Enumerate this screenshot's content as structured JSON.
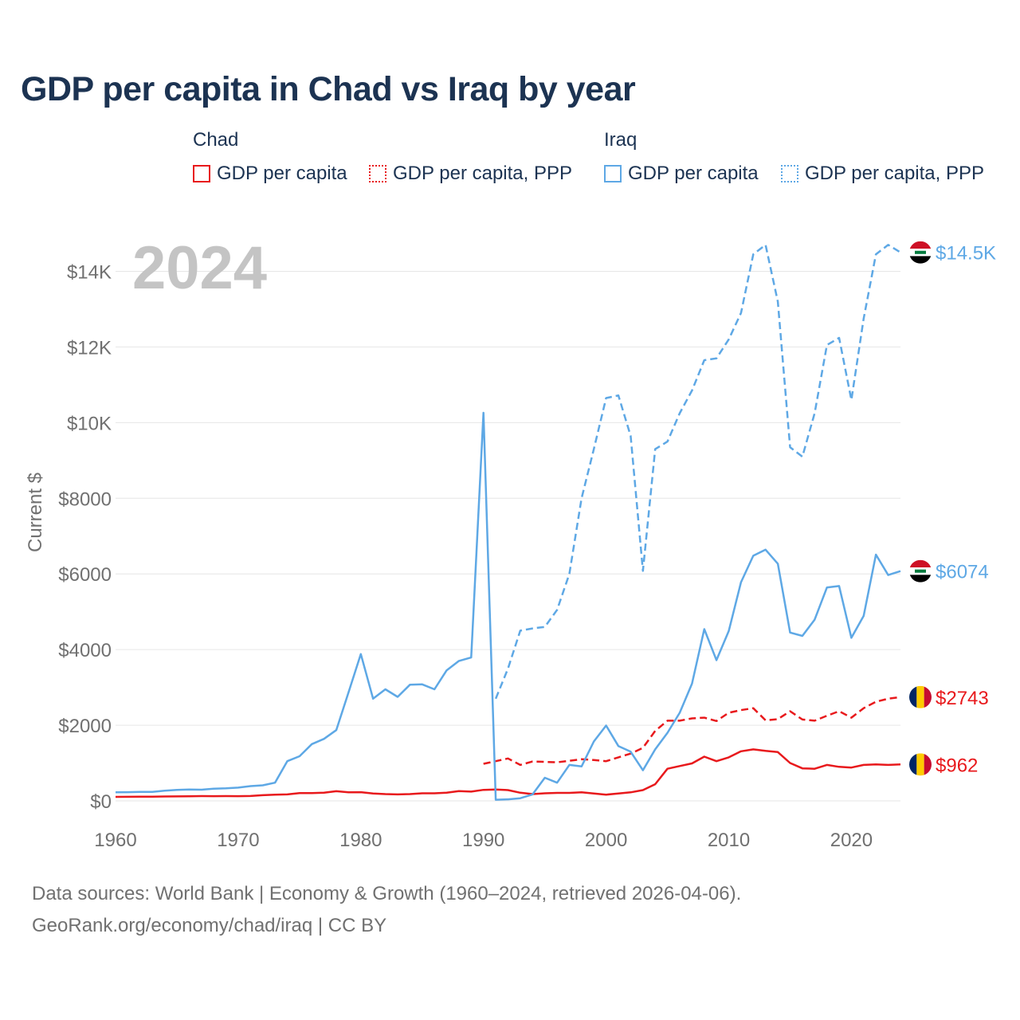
{
  "title": "GDP per capita in Chad vs Iraq by year",
  "legend": {
    "groups": [
      {
        "name": "Chad",
        "items": [
          "GDP per capita",
          "GDP per capita, PPP"
        ]
      },
      {
        "name": "Iraq",
        "items": [
          "GDP per capita",
          "GDP per capita, PPP"
        ]
      }
    ]
  },
  "source": {
    "line1": "Data sources: World Bank | Economy & Growth (1960–2024, retrieved 2026-04-06).",
    "line2": "GeoRank.org/economy/chad/iraq | CC BY"
  },
  "chart_data": {
    "type": "line",
    "title": "GDP per capita in Chad vs Iraq by year",
    "ylabel": "Current $",
    "xlabel": "",
    "year_label": "2024",
    "xlim": [
      1960,
      2024
    ],
    "ylim": [
      0,
      14600
    ],
    "x_ticks": [
      1960,
      1970,
      1980,
      1990,
      2000,
      2010,
      2020
    ],
    "y_ticks": [
      {
        "value": 0,
        "label": "$0"
      },
      {
        "value": 2000,
        "label": "$2000"
      },
      {
        "value": 4000,
        "label": "$4000"
      },
      {
        "value": 6000,
        "label": "$6000"
      },
      {
        "value": 8000,
        "label": "$8000"
      },
      {
        "value": 10000,
        "label": "$10K"
      },
      {
        "value": 12000,
        "label": "$12K"
      },
      {
        "value": 14000,
        "label": "$14K"
      }
    ],
    "colors": {
      "chad": "#e8191c",
      "iraq": "#5ea8e5"
    },
    "series": [
      {
        "name": "Chad GDP per capita",
        "country": "chad",
        "style": "solid",
        "end_label": "$962",
        "flag": "chad",
        "x": [
          1960,
          1961,
          1962,
          1963,
          1964,
          1965,
          1966,
          1967,
          1968,
          1969,
          1970,
          1971,
          1972,
          1973,
          1974,
          1975,
          1976,
          1977,
          1978,
          1979,
          1980,
          1981,
          1982,
          1983,
          1984,
          1985,
          1986,
          1987,
          1988,
          1989,
          1990,
          1991,
          1992,
          1993,
          1994,
          1995,
          1996,
          1997,
          1998,
          1999,
          2000,
          2001,
          2002,
          2003,
          2004,
          2005,
          2006,
          2007,
          2008,
          2009,
          2010,
          2011,
          2012,
          2013,
          2014,
          2015,
          2016,
          2017,
          2018,
          2019,
          2020,
          2021,
          2022,
          2023,
          2024
        ],
        "values": [
          105,
          107,
          110,
          112,
          115,
          118,
          122,
          126,
          124,
          126,
          125,
          128,
          150,
          165,
          170,
          205,
          205,
          215,
          255,
          225,
          230,
          195,
          180,
          170,
          180,
          200,
          200,
          215,
          260,
          245,
          290,
          300,
          285,
          215,
          180,
          200,
          210,
          210,
          225,
          195,
          165,
          195,
          225,
          285,
          440,
          850,
          920,
          990,
          1170,
          1050,
          1150,
          1310,
          1360,
          1320,
          1290,
          1000,
          860,
          850,
          950,
          900,
          880,
          950,
          965,
          950,
          962
        ]
      },
      {
        "name": "Chad GDP per capita, PPP",
        "country": "chad",
        "style": "dashed",
        "end_label": "$2743",
        "flag": "chad",
        "x": [
          1990,
          1991,
          1992,
          1993,
          1994,
          1995,
          1996,
          1997,
          1998,
          1999,
          2000,
          2001,
          2002,
          2003,
          2004,
          2005,
          2006,
          2007,
          2008,
          2009,
          2010,
          2011,
          2012,
          2013,
          2014,
          2015,
          2016,
          2017,
          2018,
          2019,
          2020,
          2021,
          2022,
          2023,
          2024
        ],
        "values": [
          980,
          1050,
          1120,
          950,
          1040,
          1030,
          1020,
          1060,
          1100,
          1080,
          1050,
          1150,
          1250,
          1400,
          1850,
          2120,
          2120,
          2180,
          2200,
          2110,
          2330,
          2400,
          2450,
          2130,
          2160,
          2370,
          2150,
          2120,
          2250,
          2370,
          2200,
          2450,
          2620,
          2700,
          2743
        ]
      },
      {
        "name": "Iraq GDP per capita",
        "country": "iraq",
        "style": "solid",
        "end_label": "$6074",
        "flag": "iraq",
        "x": [
          1960,
          1961,
          1962,
          1963,
          1964,
          1965,
          1966,
          1967,
          1968,
          1969,
          1970,
          1971,
          1972,
          1973,
          1974,
          1975,
          1976,
          1977,
          1978,
          1979,
          1980,
          1981,
          1982,
          1983,
          1984,
          1985,
          1986,
          1987,
          1988,
          1989,
          1990,
          1991,
          1992,
          1993,
          1994,
          1995,
          1996,
          1997,
          1998,
          1999,
          2000,
          2001,
          2002,
          2003,
          2004,
          2005,
          2006,
          2007,
          2008,
          2009,
          2010,
          2011,
          2012,
          2013,
          2014,
          2015,
          2016,
          2017,
          2018,
          2019,
          2020,
          2021,
          2022,
          2023,
          2024
        ],
        "values": [
          225,
          230,
          235,
          235,
          270,
          290,
          300,
          295,
          320,
          330,
          350,
          390,
          410,
          480,
          1050,
          1180,
          1500,
          1640,
          1870,
          2870,
          3880,
          2700,
          2950,
          2750,
          3070,
          3080,
          2950,
          3450,
          3700,
          3790,
          10260,
          30,
          40,
          70,
          170,
          610,
          480,
          950,
          910,
          1570,
          1990,
          1450,
          1300,
          810,
          1360,
          1800,
          2330,
          3100,
          4540,
          3720,
          4490,
          5780,
          6480,
          6640,
          6270,
          4450,
          4360,
          4790,
          5640,
          5680,
          4310,
          4890,
          6510,
          5970,
          6074
        ]
      },
      {
        "name": "Iraq GDP per capita, PPP",
        "country": "iraq",
        "style": "dashed",
        "end_label": "$14.5K",
        "flag": "iraq",
        "x": [
          1991,
          1992,
          1993,
          1994,
          1995,
          1996,
          1997,
          1998,
          1999,
          2000,
          2001,
          2002,
          2003,
          2004,
          2005,
          2006,
          2007,
          2008,
          2009,
          2010,
          2011,
          2012,
          2013,
          2014,
          2015,
          2016,
          2017,
          2018,
          2019,
          2020,
          2021,
          2022,
          2023,
          2024
        ],
        "values": [
          2700,
          3500,
          4500,
          4560,
          4600,
          5050,
          6000,
          8000,
          9300,
          10650,
          10720,
          9650,
          6080,
          9300,
          9500,
          10250,
          10850,
          11650,
          11700,
          12200,
          12900,
          14450,
          14700,
          13200,
          9350,
          9100,
          10250,
          12050,
          12240,
          10600,
          12750,
          14450,
          14700,
          14500
        ]
      }
    ]
  }
}
